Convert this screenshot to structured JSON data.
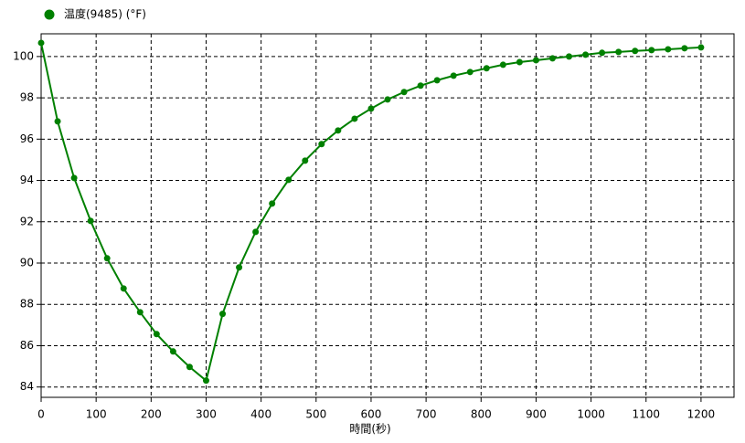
{
  "chart_data": {
    "type": "line",
    "xlabel": "時間(秒)",
    "x": [
      0,
      30,
      60,
      90,
      120,
      150,
      180,
      210,
      240,
      270,
      300,
      330,
      360,
      390,
      420,
      450,
      480,
      510,
      540,
      570,
      600,
      630,
      660,
      690,
      720,
      750,
      780,
      810,
      840,
      870,
      900,
      930,
      960,
      990,
      1020,
      1050,
      1080,
      1110,
      1140,
      1170,
      1200
    ],
    "series": [
      {
        "name": "温度(9485) (°F)",
        "color": "#008000",
        "values": [
          100.66,
          96.86,
          94.12,
          92.04,
          90.23,
          88.77,
          87.62,
          86.56,
          85.72,
          84.97,
          84.31,
          87.54,
          89.79,
          91.51,
          92.88,
          94.03,
          94.96,
          95.76,
          96.42,
          96.99,
          97.48,
          97.92,
          98.28,
          98.59,
          98.85,
          99.07,
          99.25,
          99.43,
          99.6,
          99.73,
          99.82,
          99.91,
          100.0,
          100.09,
          100.18,
          100.22,
          100.27,
          100.31,
          100.35,
          100.4,
          100.44
        ]
      }
    ],
    "xlim": [
      0,
      1260
    ],
    "ylim": [
      83.5,
      101.1
    ],
    "xticks": [
      0,
      100,
      200,
      300,
      400,
      500,
      600,
      700,
      800,
      900,
      1000,
      1100,
      1200
    ],
    "yticks": [
      84,
      86,
      88,
      90,
      92,
      94,
      96,
      98,
      100
    ],
    "grid": true,
    "legend": "top-left"
  }
}
